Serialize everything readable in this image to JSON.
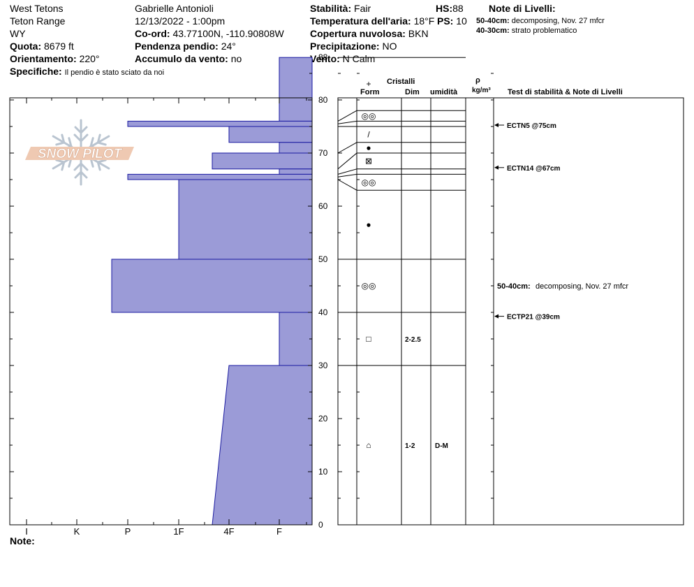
{
  "header": {
    "location": "West Tetons",
    "range": "Teton Range",
    "state": "WY",
    "elevation_label": "Quota:",
    "elevation_value": "8679 ft",
    "aspect_label": "Orientamento:",
    "aspect_value": "220°",
    "specifics_label": "Specifiche:",
    "specifics_value": "Il pendio è stato sciato da noi",
    "observer": "Gabrielle Antonioli",
    "datetime": "12/13/2022 - 1:00pm",
    "coord_label": "Co-ord:",
    "coord_value": "43.77100N, -110.90808W",
    "slope_label": "Pendenza pendio:",
    "slope_value": "24°",
    "wind_load_label": "Accumulo da vento:",
    "wind_load_value": "no",
    "stability_label": "Stabilità:",
    "stability_value": "Fair",
    "air_temp_label": "Temperatura dell'aria:",
    "air_temp_value": "18°F",
    "cloud_label": "Copertura nuvolosa:",
    "cloud_value": "BKN",
    "precip_label": "Precipitazione:",
    "precip_value": "NO",
    "wind_label": "Vento:",
    "wind_value": "N Calm",
    "hs_label": "HS:",
    "hs_value": "88",
    "ps_label": "PS:",
    "ps_value": "10",
    "layer_notes_title": "Note di Livelli:",
    "layer_notes": [
      {
        "range": "50-40cm:",
        "text": "decomposing, Nov. 27 mfcr"
      },
      {
        "range": "40-30cm:",
        "text": "strato problematico"
      }
    ]
  },
  "logo_text": "SNOW PILOT",
  "footer": {
    "note_label": "Note:"
  },
  "columns": {
    "crystals": "Cristalli",
    "form": "Form",
    "dim": "Dim",
    "moisture": "umidità",
    "rho": "ρ",
    "density_unit": "kg/m³",
    "tests": "Test di stabilità & Note di Livelli"
  },
  "colors": {
    "hardness_fill": "#9b9bd7",
    "hardness_stroke": "#1a1aa0"
  },
  "chart_data": {
    "type": "bar",
    "hardness_ticks": [
      "I",
      "K",
      "P",
      "1F",
      "4F",
      "F"
    ],
    "depth_ticks": [
      0,
      10,
      20,
      30,
      40,
      50,
      60,
      70,
      80,
      88
    ],
    "ylim": [
      0,
      88
    ],
    "hardness_layers": [
      {
        "top": 88,
        "bottom": 76,
        "hardness": "F"
      },
      {
        "top": 76,
        "bottom": 75,
        "hardness": "P"
      },
      {
        "top": 75,
        "bottom": 72,
        "hardness": "4F"
      },
      {
        "top": 72,
        "bottom": 70,
        "hardness": "F"
      },
      {
        "top": 70,
        "bottom": 67,
        "hardness": "4F-"
      },
      {
        "top": 67,
        "bottom": 66,
        "hardness": "F"
      },
      {
        "top": 66,
        "bottom": 65,
        "hardness": "P"
      },
      {
        "top": 65,
        "bottom": 50,
        "hardness": "1F-"
      },
      {
        "top": 50,
        "bottom": 40,
        "hardness": "P-"
      },
      {
        "top": 40,
        "bottom": 30,
        "hardness": "F"
      },
      {
        "top": 30,
        "bottom": 0,
        "hardness_top": "4F",
        "hardness_bottom": "4F-"
      }
    ],
    "crystal_layers": [
      {
        "top": 88,
        "bottom": 78,
        "form": "+",
        "dim": "",
        "moisture": ""
      },
      {
        "top": 78,
        "bottom": 76,
        "form": "◎◎",
        "dim": "",
        "moisture": ""
      },
      {
        "top": 76,
        "bottom": 75,
        "form": "",
        "dim": "",
        "moisture": ""
      },
      {
        "top": 75,
        "bottom": 72,
        "form": "/",
        "dim": "",
        "moisture": ""
      },
      {
        "top": 72,
        "bottom": 70,
        "form": "●",
        "dim": "",
        "moisture": ""
      },
      {
        "top": 70,
        "bottom": 67,
        "form": "⊠",
        "dim": "",
        "moisture": ""
      },
      {
        "top": 67,
        "bottom": 66,
        "form": "",
        "dim": "",
        "moisture": ""
      },
      {
        "top": 66,
        "bottom": 63,
        "form": "◎◎",
        "dim": "",
        "moisture": ""
      },
      {
        "top": 63,
        "bottom": 50,
        "form": "●",
        "dim": "",
        "moisture": ""
      },
      {
        "top": 50,
        "bottom": 40,
        "form": "◎◎",
        "dim": "",
        "moisture": ""
      },
      {
        "top": 40,
        "bottom": 30,
        "form": "□",
        "dim": "2-2.5",
        "moisture": ""
      },
      {
        "top": 30,
        "bottom": 0,
        "form": "⌂",
        "dim": "1-2",
        "moisture": "D-M"
      }
    ],
    "stability_tests": [
      {
        "depth": 75,
        "label": "ECTN5 @75cm"
      },
      {
        "depth": 67,
        "label": "ECTN14 @67cm"
      },
      {
        "depth": 39,
        "label": "ECTP21 @39cm"
      }
    ],
    "layer_comment": {
      "depth": 45,
      "range": "50-40cm:",
      "text": "decomposing, Nov. 27 mfcr"
    }
  }
}
